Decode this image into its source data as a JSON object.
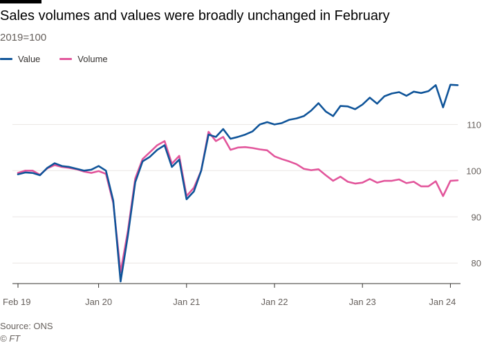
{
  "header": {
    "title": "Sales volumes and values were broadly unchanged in February",
    "subtitle": "2019=100"
  },
  "legend": [
    {
      "label": "Value",
      "color": "#0f5499"
    },
    {
      "label": "Volume",
      "color": "#e2559b"
    }
  ],
  "footer": {
    "source": "Source: ONS",
    "credit": "© FT"
  },
  "chart_data": {
    "type": "line",
    "title": "Sales volumes and values were broadly unchanged in February",
    "subtitle": "2019=100",
    "xlabel": "",
    "ylabel": "",
    "x_start": "Feb 2019",
    "x_end": "Feb 2024",
    "x_ticks": [
      {
        "label": "Feb 19",
        "index": 0
      },
      {
        "label": "Jan 20",
        "index": 11
      },
      {
        "label": "Jan 21",
        "index": 23
      },
      {
        "label": "Jan 22",
        "index": 35
      },
      {
        "label": "Jan 23",
        "index": 47
      },
      {
        "label": "Jan 24",
        "index": 59
      }
    ],
    "y_ticks": [
      80,
      90,
      100,
      110
    ],
    "ylim": [
      76,
      122
    ],
    "grid": true,
    "y_axis_side": "right",
    "series": [
      {
        "name": "Value",
        "color": "#0f5499",
        "values": [
          99.2,
          99.6,
          99.5,
          99.0,
          100.6,
          101.6,
          101.0,
          100.8,
          100.4,
          100.0,
          100.2,
          101.0,
          100.0,
          93.5,
          76.0,
          86.0,
          97.5,
          102.0,
          103.0,
          104.5,
          105.5,
          100.8,
          102.4,
          93.8,
          95.5,
          100.0,
          107.8,
          107.3,
          109.0,
          106.9,
          107.3,
          107.8,
          108.5,
          110.0,
          110.5,
          110.0,
          110.3,
          111.0,
          111.3,
          111.8,
          113.0,
          114.6,
          112.8,
          111.8,
          114.0,
          113.9,
          113.3,
          114.3,
          115.8,
          114.5,
          116.1,
          116.7,
          117.0,
          116.2,
          117.1,
          116.8,
          117.2,
          118.5,
          113.7,
          118.6,
          118.5
        ]
      },
      {
        "name": "Volume",
        "color": "#e2559b",
        "values": [
          99.5,
          100.0,
          100.0,
          99.1,
          100.5,
          101.2,
          100.8,
          100.6,
          100.3,
          99.8,
          99.5,
          99.9,
          99.3,
          93.0,
          78.0,
          87.0,
          98.3,
          102.5,
          104.0,
          105.5,
          106.4,
          101.5,
          103.2,
          94.5,
          96.3,
          100.0,
          108.4,
          106.4,
          107.3,
          104.5,
          105.0,
          105.1,
          104.9,
          104.6,
          104.4,
          103.1,
          102.5,
          102.0,
          101.4,
          100.4,
          100.1,
          100.3,
          99.0,
          97.8,
          98.7,
          97.6,
          97.2,
          97.4,
          98.2,
          97.4,
          97.8,
          97.8,
          98.1,
          97.3,
          97.6,
          96.6,
          96.6,
          97.7,
          94.5,
          97.8,
          97.9
        ]
      }
    ]
  }
}
